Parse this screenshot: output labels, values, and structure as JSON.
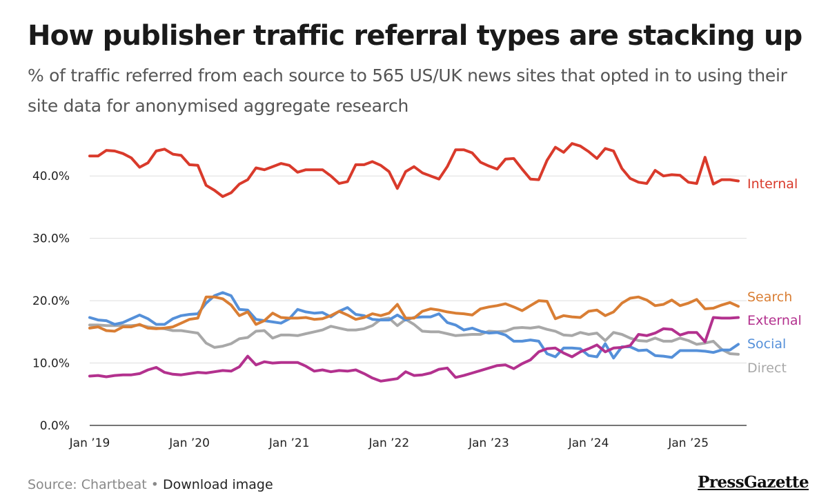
{
  "title": "How publisher traffic referral types are stacking up",
  "subtitle": "% of traffic referred from each source to 565 US/UK news sites that opted in to using their site data for anonymised aggregate research",
  "footer": {
    "source": "Source: Chartbeat",
    "separator": "•",
    "download": "Download image"
  },
  "brand": "PressGazette",
  "chart_data": {
    "type": "line",
    "title": "How publisher traffic referral types are stacking up",
    "xlabel": "",
    "ylabel": "",
    "x_ticks": [
      "Jan ’19",
      "Jan ’20",
      "Jan ’21",
      "Jan ’22",
      "Jan ’23",
      "Jan ’24",
      "Jan ’25"
    ],
    "y_ticks": [
      "0.0%",
      "10.0%",
      "20.0%",
      "30.0%",
      "40.0%"
    ],
    "y_tick_values": [
      0,
      10,
      20,
      30,
      40
    ],
    "ylim": [
      0,
      45
    ],
    "x_start": "2019-01",
    "x_end": "2025-07",
    "grid": "horizontal",
    "legend": "direct labels at right end of lines",
    "series": [
      {
        "name": "Internal",
        "color": "#d93a2b",
        "values": [
          43.2,
          43.2,
          44.1,
          44.0,
          43.6,
          42.9,
          41.4,
          42.1,
          44.0,
          44.3,
          43.5,
          43.3,
          41.8,
          41.7,
          38.5,
          37.7,
          36.7,
          37.3,
          38.7,
          39.4,
          41.3,
          41.0,
          41.5,
          42.0,
          41.7,
          40.6,
          41.0,
          41.0,
          41.0,
          40.0,
          38.8,
          39.1,
          41.8,
          41.8,
          42.3,
          41.7,
          40.7,
          38.0,
          40.7,
          41.5,
          40.5,
          40.0,
          39.5,
          41.5,
          44.2,
          44.2,
          43.7,
          42.2,
          41.6,
          41.1,
          42.7,
          42.8,
          41.1,
          39.5,
          39.4,
          42.5,
          44.6,
          43.8,
          45.2,
          44.8,
          43.9,
          42.8,
          44.4,
          44.0,
          41.2,
          39.6,
          39.0,
          38.8,
          40.9,
          40.0,
          40.2,
          40.1,
          39.0,
          38.8,
          43.0,
          38.7,
          39.4,
          39.4,
          39.2
        ]
      },
      {
        "name": "Search",
        "color": "#d97e34",
        "values": [
          15.6,
          15.8,
          15.2,
          15.1,
          15.8,
          15.8,
          16.2,
          15.6,
          15.5,
          15.6,
          15.8,
          16.4,
          17.0,
          17.2,
          20.6,
          20.6,
          20.3,
          19.3,
          17.6,
          18.2,
          16.2,
          16.8,
          18.0,
          17.3,
          17.2,
          17.2,
          17.3,
          17.0,
          17.1,
          17.6,
          18.3,
          17.7,
          17.0,
          17.3,
          17.9,
          17.6,
          18.0,
          19.4,
          17.2,
          17.2,
          18.3,
          18.7,
          18.5,
          18.2,
          18.0,
          17.9,
          17.7,
          18.7,
          19.0,
          19.2,
          19.5,
          19.0,
          18.4,
          19.2,
          20.0,
          19.9,
          17.1,
          17.6,
          17.4,
          17.3,
          18.3,
          18.5,
          17.6,
          18.2,
          19.6,
          20.4,
          20.6,
          20.1,
          19.2,
          19.4,
          20.1,
          19.2,
          19.6,
          20.2,
          18.7,
          18.8,
          19.3,
          19.7,
          19.1
        ]
      },
      {
        "name": "External",
        "color": "#b3318e",
        "values": [
          7.9,
          8.0,
          7.8,
          8.0,
          8.1,
          8.1,
          8.3,
          8.9,
          9.3,
          8.5,
          8.2,
          8.1,
          8.3,
          8.5,
          8.4,
          8.6,
          8.8,
          8.7,
          9.4,
          11.1,
          9.7,
          10.2,
          10.0,
          10.1,
          10.1,
          10.1,
          9.5,
          8.7,
          8.9,
          8.6,
          8.8,
          8.7,
          8.9,
          8.3,
          7.6,
          7.1,
          7.3,
          7.5,
          8.6,
          8.0,
          8.1,
          8.4,
          9.0,
          9.2,
          7.7,
          8.0,
          8.4,
          8.8,
          9.2,
          9.6,
          9.7,
          9.1,
          9.9,
          10.5,
          11.8,
          12.3,
          12.4,
          11.6,
          11.0,
          11.8,
          12.3,
          12.9,
          11.8,
          12.4,
          12.5,
          12.8,
          14.6,
          14.4,
          14.8,
          15.5,
          15.4,
          14.5,
          14.9,
          14.9,
          13.4,
          17.3,
          17.2,
          17.2,
          17.3
        ]
      },
      {
        "name": "Social",
        "color": "#5590d9",
        "values": [
          17.3,
          16.9,
          16.8,
          16.2,
          16.5,
          17.1,
          17.7,
          17.1,
          16.2,
          16.2,
          17.1,
          17.6,
          17.8,
          17.9,
          19.6,
          20.8,
          21.3,
          20.8,
          18.6,
          18.5,
          17.0,
          16.8,
          16.6,
          16.4,
          17.1,
          18.6,
          18.2,
          18.0,
          18.1,
          17.4,
          18.3,
          18.9,
          17.8,
          17.6,
          17.0,
          16.9,
          16.9,
          17.7,
          16.9,
          17.3,
          17.4,
          17.4,
          17.9,
          16.5,
          16.1,
          15.3,
          15.6,
          15.1,
          14.8,
          14.9,
          14.5,
          13.5,
          13.5,
          13.7,
          13.5,
          11.5,
          11.0,
          12.4,
          12.4,
          12.3,
          11.2,
          11.0,
          13.1,
          10.8,
          12.6,
          12.6,
          12.0,
          12.1,
          11.2,
          11.1,
          10.9,
          12.0,
          12.0,
          12.0,
          11.9,
          11.7,
          12.1,
          12.1,
          13.0
        ]
      },
      {
        "name": "Direct",
        "color": "#a8a8a8",
        "values": [
          16.1,
          16.1,
          16.0,
          16.0,
          16.0,
          16.0,
          16.1,
          15.8,
          15.6,
          15.5,
          15.2,
          15.2,
          15.0,
          14.8,
          13.2,
          12.5,
          12.7,
          13.1,
          13.9,
          14.1,
          15.1,
          15.2,
          14.0,
          14.5,
          14.5,
          14.4,
          14.7,
          15.0,
          15.3,
          15.9,
          15.6,
          15.3,
          15.3,
          15.5,
          16.0,
          17.0,
          17.2,
          16.0,
          17.0,
          16.2,
          15.1,
          15.0,
          15.0,
          14.7,
          14.4,
          14.5,
          14.6,
          14.6,
          15.1,
          15.0,
          15.1,
          15.6,
          15.7,
          15.6,
          15.8,
          15.4,
          15.1,
          14.5,
          14.4,
          14.9,
          14.6,
          14.8,
          13.6,
          14.9,
          14.6,
          14.0,
          13.6,
          13.5,
          14.0,
          13.5,
          13.5,
          14.0,
          13.6,
          13.0,
          13.2,
          13.5,
          12.2,
          11.5,
          11.4
        ]
      }
    ]
  }
}
